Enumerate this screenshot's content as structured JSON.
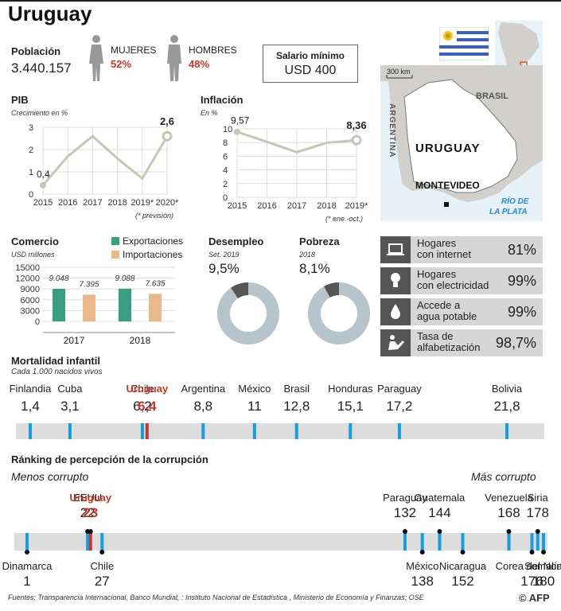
{
  "title": "Uruguay",
  "poblacion": {
    "label": "Población",
    "value": "3.440.157"
  },
  "mujeres": {
    "label": "MUJERES",
    "value": "52%"
  },
  "hombres": {
    "label": "HOMBRES",
    "value": "48%"
  },
  "salario": {
    "label": "Salario mínimo",
    "value": "USD 400"
  },
  "map": {
    "scale": "300 km",
    "brasil": "BRASIL",
    "argentina": "ARGENTINA",
    "uruguay": "URUGUAY",
    "montevideo": "MONTEVIDEO",
    "rio1": "RÍO DE",
    "rio2": "LA PLATA"
  },
  "indicators": [
    {
      "label1": "Hogares",
      "label2": "con internet",
      "value": "81%",
      "icon": "laptop-icon"
    },
    {
      "label1": "Hogares",
      "label2": "con electricidad",
      "value": "99%",
      "icon": "lightbulb-icon"
    },
    {
      "label1": "Accede a",
      "label2": "agua potable",
      "value": "99%",
      "icon": "water-drop-icon"
    },
    {
      "label1": "Tasa de",
      "label2": "alfabetización",
      "value": "98,7%",
      "icon": "reading-icon"
    }
  ],
  "colors": {
    "line": "#c8c4b8",
    "export": "#3a9e82",
    "import": "#e8b98a",
    "highlight": "#c0392b",
    "marker": "#1a9ed9",
    "donut": "#b8c4cc",
    "donut_dark": "#555555"
  },
  "chart_data": [
    {
      "type": "line",
      "title": "PIB",
      "subtitle": "Crecimiento en %",
      "x": [
        "2015",
        "2016",
        "2017",
        "2018",
        "2019*",
        "2020*"
      ],
      "values": [
        0.4,
        1.7,
        2.6,
        1.6,
        0.7,
        2.6
      ],
      "ylim": [
        0,
        3
      ],
      "yticks": [
        "0",
        "1",
        "2",
        "3"
      ],
      "labels": {
        "first": "0,4",
        "last": "2,6"
      },
      "note": "(* previsión)"
    },
    {
      "type": "line",
      "title": "Inflación",
      "subtitle": "En %",
      "x": [
        "2015",
        "2016",
        "2017",
        "2018",
        "2019*"
      ],
      "values": [
        9.57,
        8.1,
        6.6,
        7.96,
        8.36
      ],
      "ylim": [
        0,
        10
      ],
      "yticks": [
        "0",
        "2",
        "4",
        "6",
        "8",
        "10"
      ],
      "labels": {
        "first": "9,57",
        "last": "8,36"
      },
      "note": "(* ene.-oct.)"
    },
    {
      "type": "bar",
      "title": "Comercio",
      "subtitle": "USD millones",
      "categories": [
        "2017",
        "2018"
      ],
      "series": [
        {
          "name": "Exportaciones",
          "values": [
            9048,
            9088
          ],
          "labels": [
            "9.048",
            "9.088"
          ]
        },
        {
          "name": "Importaciones",
          "values": [
            7395,
            7635
          ],
          "labels": [
            "7.395",
            "7.635"
          ]
        }
      ],
      "ylim": [
        0,
        15000
      ],
      "yticks": [
        "0",
        "3000",
        "6000",
        "9000",
        "12000",
        "15000"
      ]
    },
    {
      "type": "pie",
      "title": "Desempleo",
      "subtitle": "Set. 2019",
      "value": 9.5,
      "label": "9,5%"
    },
    {
      "type": "pie",
      "title": "Pobreza",
      "subtitle": "2018",
      "value": 8.1,
      "label": "8,1%"
    },
    {
      "type": "scatter",
      "title": "Mortalidad infantil",
      "subtitle": "Cada 1.000 nacidos vivos",
      "xlim": [
        1.4,
        21.8
      ],
      "points": [
        {
          "name": "Finlandia",
          "value": 1.4,
          "label": "1,4"
        },
        {
          "name": "Cuba",
          "value": 3.1,
          "label": "3,1"
        },
        {
          "name": "Chile",
          "value": 6.2,
          "label": "6,2"
        },
        {
          "name": "Uruguay",
          "value": 6.4,
          "label": "6,4",
          "highlight": true
        },
        {
          "name": "Argentina",
          "value": 8.8,
          "label": "8,8"
        },
        {
          "name": "México",
          "value": 11,
          "label": "11"
        },
        {
          "name": "Brasil",
          "value": 12.8,
          "label": "12,8"
        },
        {
          "name": "Honduras",
          "value": 15.1,
          "label": "15,1"
        },
        {
          "name": "Paraguay",
          "value": 17.2,
          "label": "17,2"
        },
        {
          "name": "Bolivia",
          "value": 21.8,
          "label": "21,8"
        }
      ]
    },
    {
      "type": "scatter",
      "title": "Ránking de percepción de la corrupción",
      "left_label": "Menos corrupto",
      "right_label": "Más corrupto",
      "xlim": [
        1,
        180
      ],
      "points": [
        {
          "name": "Dinamarca",
          "value": 1,
          "label": "1",
          "side": "bottom"
        },
        {
          "name": "EEUU",
          "value": 22,
          "label": "22",
          "side": "top"
        },
        {
          "name": "Uruguay",
          "value": 23,
          "label": "23",
          "side": "top",
          "highlight": true
        },
        {
          "name": "Chile",
          "value": 27,
          "label": "27",
          "side": "bottom"
        },
        {
          "name": "Paraguay",
          "value": 132,
          "label": "132",
          "side": "top"
        },
        {
          "name": "México",
          "value": 138,
          "label": "138",
          "side": "bottom"
        },
        {
          "name": "Guatemala",
          "value": 144,
          "label": "144",
          "side": "top"
        },
        {
          "name": "Nicaragua",
          "value": 152,
          "label": "152",
          "side": "bottom"
        },
        {
          "name": "Venezuela",
          "value": 168,
          "label": "168",
          "side": "top"
        },
        {
          "name": "Corea del Norte",
          "value": 176,
          "label": "176",
          "side": "bottom"
        },
        {
          "name": "Siria",
          "value": 178,
          "label": "178",
          "side": "top"
        },
        {
          "name": "Somalía",
          "value": 180,
          "label": "180",
          "side": "bottom"
        }
      ]
    }
  ],
  "source": "Fuentes: Transparencia Internacional, Banco Mundial, : Instituto Nacional de Estadística , Ministerio de Economía y Finanzas; OSE",
  "credit": "© AFP"
}
